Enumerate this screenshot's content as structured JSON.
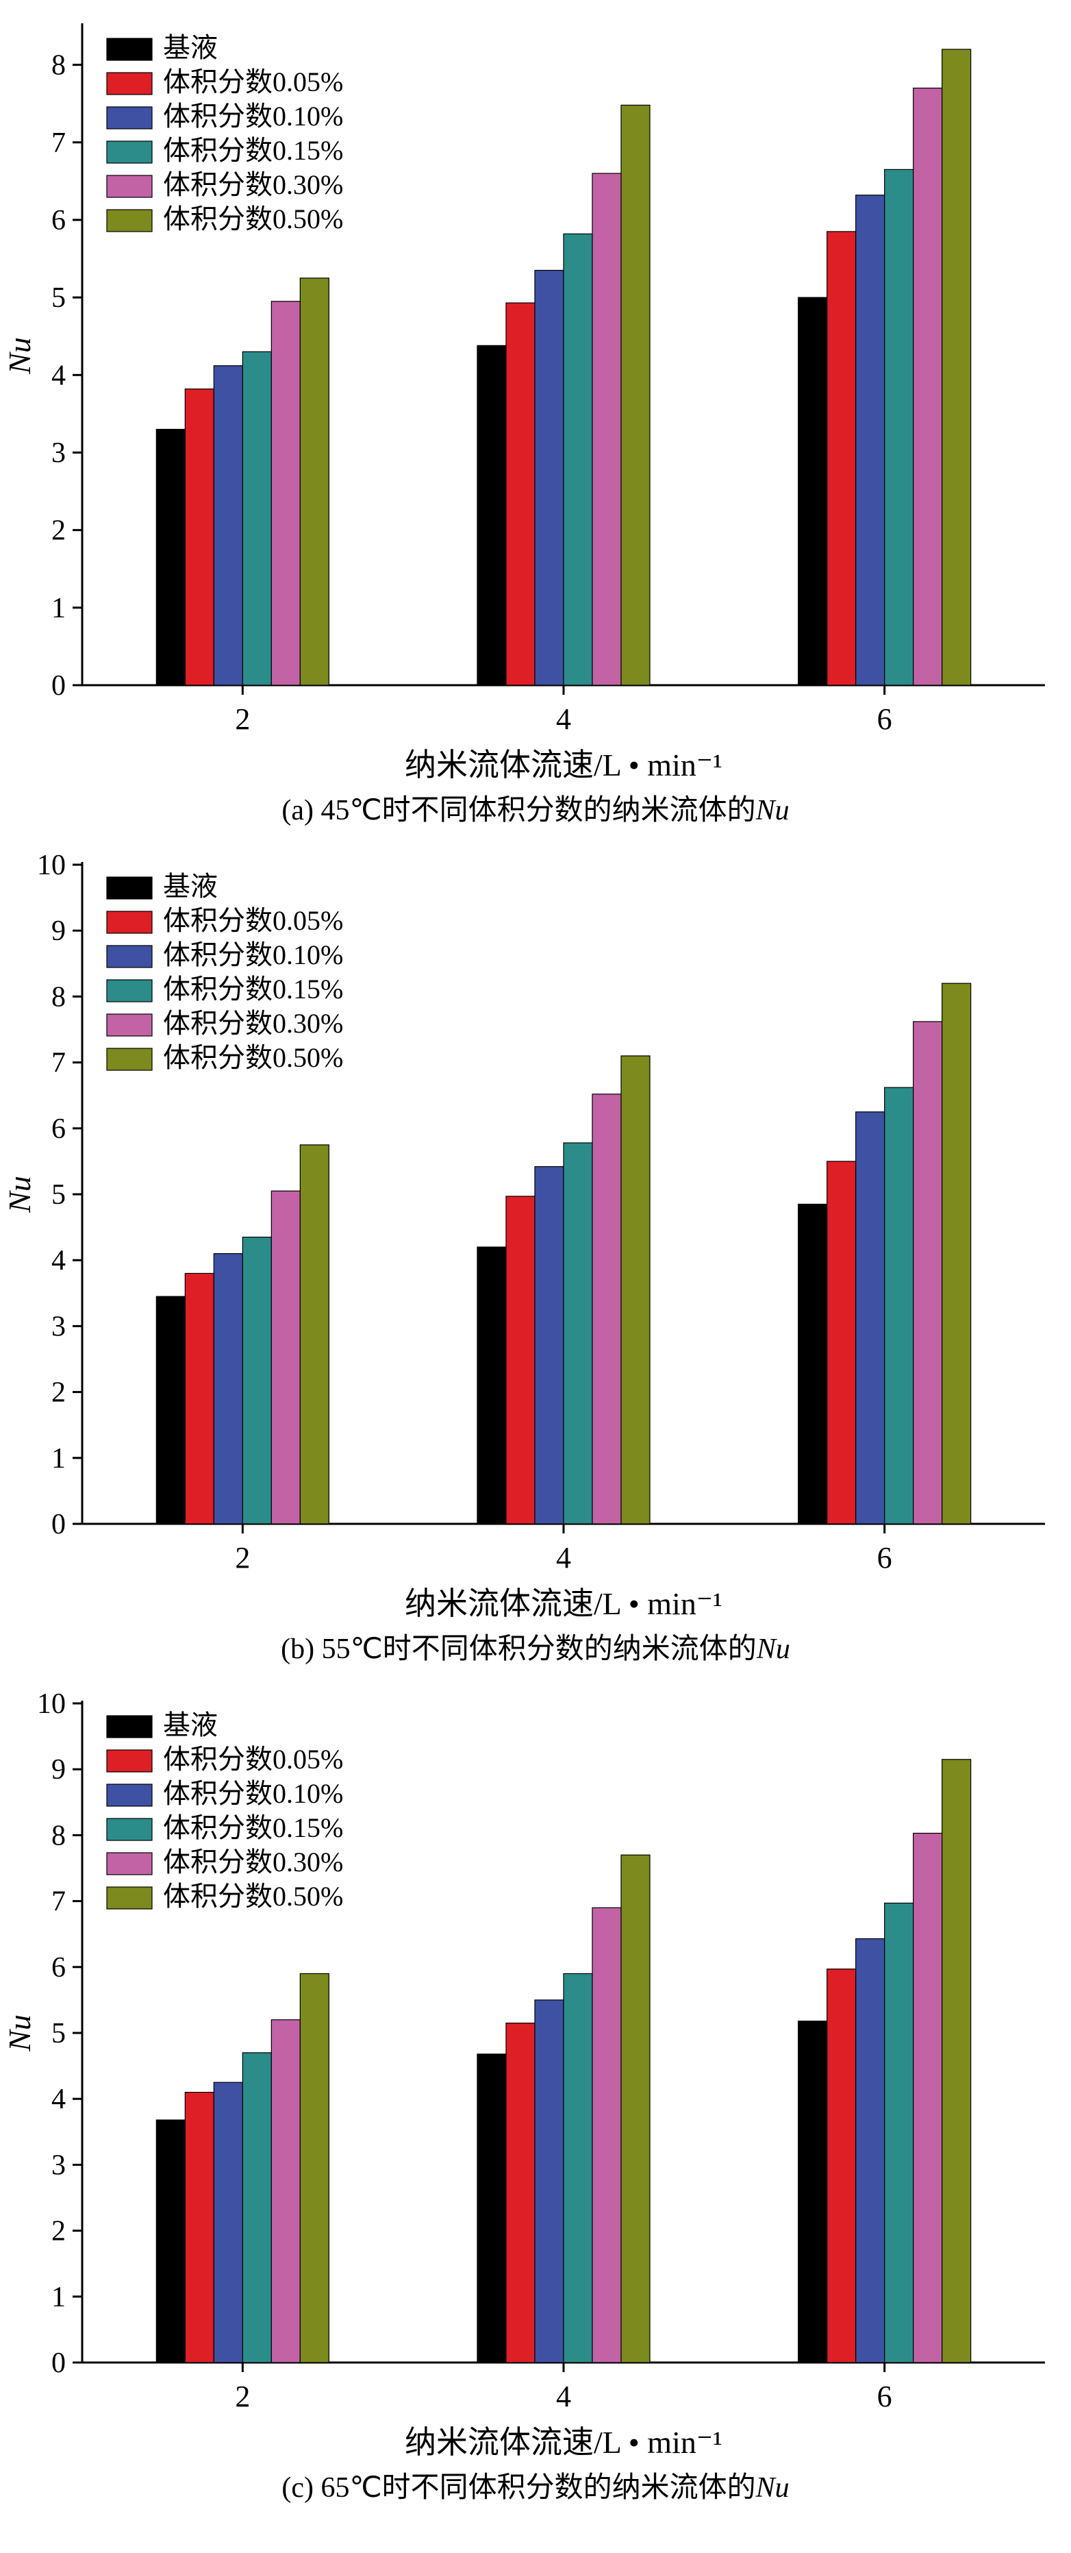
{
  "page": {
    "background": "#ffffff"
  },
  "chart_data": "see charts",
  "charts": [
    {
      "type": "bar",
      "panel": "a",
      "caption": {
        "prefix": "(a) 45℃时不同体积分数的纳米流体的",
        "italic_suffix": "Nu"
      },
      "xlabel": "纳米流体流速/L • min⁻¹",
      "ylabel": "Nu",
      "categories": [
        "2",
        "4",
        "6"
      ],
      "yticks": [
        0,
        1,
        2,
        3,
        4,
        5,
        6,
        7,
        8
      ],
      "ylim": [
        0,
        8.5
      ],
      "grid": false,
      "legend_position": "top-left",
      "series": [
        {
          "name": "基液",
          "color": "#000000",
          "values": [
            3.3,
            4.38,
            5.0
          ]
        },
        {
          "name": "体积分数0.05%",
          "color": "#de1f26",
          "values": [
            3.82,
            4.93,
            5.85
          ]
        },
        {
          "name": "体积分数0.10%",
          "color": "#3f51a3",
          "values": [
            4.12,
            5.35,
            6.32
          ]
        },
        {
          "name": "体积分数0.15%",
          "color": "#2b8c8a",
          "values": [
            4.3,
            5.82,
            6.65
          ]
        },
        {
          "name": "体积分数0.30%",
          "color": "#c263a5",
          "values": [
            4.95,
            6.6,
            7.7
          ]
        },
        {
          "name": "体积分数0.50%",
          "color": "#7c8a1e",
          "values": [
            5.25,
            7.48,
            8.2
          ]
        }
      ]
    },
    {
      "type": "bar",
      "panel": "b",
      "caption": {
        "prefix": "(b) 55℃时不同体积分数的纳米流体的",
        "italic_suffix": "Nu"
      },
      "xlabel": "纳米流体流速/L • min⁻¹",
      "ylabel": "Nu",
      "categories": [
        "2",
        "4",
        "6"
      ],
      "yticks": [
        0,
        1,
        2,
        3,
        4,
        5,
        6,
        7,
        8,
        9,
        10
      ],
      "ylim": [
        0,
        10
      ],
      "grid": false,
      "legend_position": "top-left",
      "series": [
        {
          "name": "基液",
          "color": "#000000",
          "values": [
            3.45,
            4.2,
            4.85
          ]
        },
        {
          "name": "体积分数0.05%",
          "color": "#de1f26",
          "values": [
            3.8,
            4.97,
            5.5
          ]
        },
        {
          "name": "体积分数0.10%",
          "color": "#3f51a3",
          "values": [
            4.1,
            5.42,
            6.25
          ]
        },
        {
          "name": "体积分数0.15%",
          "color": "#2b8c8a",
          "values": [
            4.35,
            5.78,
            6.62
          ]
        },
        {
          "name": "体积分数0.30%",
          "color": "#c263a5",
          "values": [
            5.05,
            6.52,
            7.62
          ]
        },
        {
          "name": "体积分数0.50%",
          "color": "#7c8a1e",
          "values": [
            5.75,
            7.1,
            8.2
          ]
        }
      ]
    },
    {
      "type": "bar",
      "panel": "c",
      "caption": {
        "prefix": "(c) 65℃时不同体积分数的纳米流体的",
        "italic_suffix": "Nu"
      },
      "xlabel": "纳米流体流速/L • min⁻¹",
      "ylabel": "Nu",
      "categories": [
        "2",
        "4",
        "6"
      ],
      "yticks": [
        0,
        1,
        2,
        3,
        4,
        5,
        6,
        7,
        8,
        9,
        10
      ],
      "ylim": [
        0,
        10
      ],
      "grid": false,
      "legend_position": "top-left",
      "series": [
        {
          "name": "基液",
          "color": "#000000",
          "values": [
            3.68,
            4.68,
            5.18
          ]
        },
        {
          "name": "体积分数0.05%",
          "color": "#de1f26",
          "values": [
            4.1,
            5.15,
            5.97
          ]
        },
        {
          "name": "体积分数0.10%",
          "color": "#3f51a3",
          "values": [
            4.25,
            5.5,
            6.43
          ]
        },
        {
          "name": "体积分数0.15%",
          "color": "#2b8c8a",
          "values": [
            4.7,
            5.9,
            6.97
          ]
        },
        {
          "name": "体积分数0.30%",
          "color": "#c263a5",
          "values": [
            5.2,
            6.9,
            8.03
          ]
        },
        {
          "name": "体积分数0.50%",
          "color": "#7c8a1e",
          "values": [
            5.9,
            7.7,
            9.15
          ]
        }
      ]
    }
  ]
}
